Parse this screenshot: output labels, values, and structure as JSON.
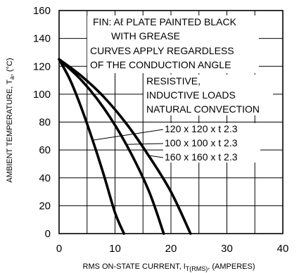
{
  "chart_data": {
    "type": "line",
    "xlabel": {
      "main": "RMS ON-STATE CURRENT, I",
      "sub": "T(RMS)",
      "tail": ", (AMPERES)"
    },
    "ylabel": {
      "main": "AMBIENT TEMPERATURE, T",
      "sub": "a",
      "tail": ", (°C)"
    },
    "xlim": [
      0,
      40
    ],
    "ylim": [
      0,
      160
    ],
    "xticks": [
      0,
      10,
      20,
      30,
      40
    ],
    "yticks": [
      0,
      20,
      40,
      60,
      80,
      100,
      120,
      140,
      160
    ],
    "grid": true,
    "series": [
      {
        "name": "120 x 120 x t 2.3",
        "x": [
          0,
          2,
          4,
          6,
          8,
          10,
          11.6
        ],
        "y": [
          125,
          110,
          90,
          67,
          42,
          15,
          0
        ]
      },
      {
        "name": "100 x 100 x t 2.3",
        "x": [
          0,
          4,
          8,
          12,
          16,
          18.7
        ],
        "y": [
          125,
          110,
          90,
          64,
          31,
          0
        ]
      },
      {
        "name": "160 x 160 x t 2.3",
        "x": [
          0,
          4,
          8,
          12,
          16,
          20,
          23.5
        ],
        "y": [
          125,
          113,
          98,
          79,
          56,
          30,
          0
        ]
      }
    ],
    "annotations": {
      "note_lines": [
        "FIN: Aℓ PLATE PAINTED BLACK",
        "WITH GREASE",
        "CURVES APPLY REGARDLESS",
        "OF THE CONDUCTION ANGLE"
      ],
      "load_lines": [
        "RESISTIVE,",
        "INDUCTIVE LOADS",
        "NATURAL CONVECTION"
      ]
    }
  }
}
